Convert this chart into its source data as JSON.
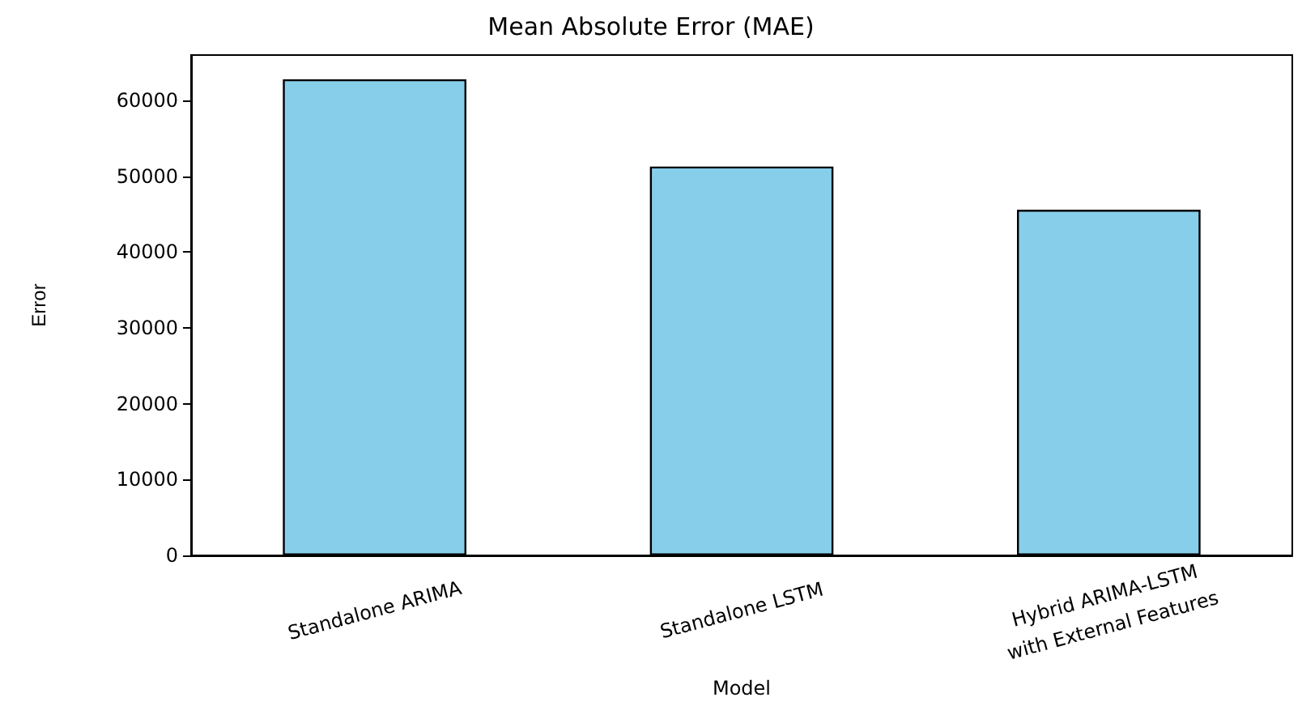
{
  "chart_data": {
    "type": "bar",
    "title": "Mean Absolute Error (MAE)",
    "xlabel": "Model",
    "ylabel": "Error",
    "categories": [
      "Standalone ARIMA",
      "Standalone LSTM",
      "Hybrid ARIMA-LSTM\nwith External Features"
    ],
    "values": [
      62800,
      51300,
      45600
    ],
    "color": "#87ceeb",
    "ylim": [
      0,
      66000
    ],
    "yticks": [
      0,
      10000,
      20000,
      30000,
      40000,
      50000,
      60000
    ],
    "grid": false
  }
}
